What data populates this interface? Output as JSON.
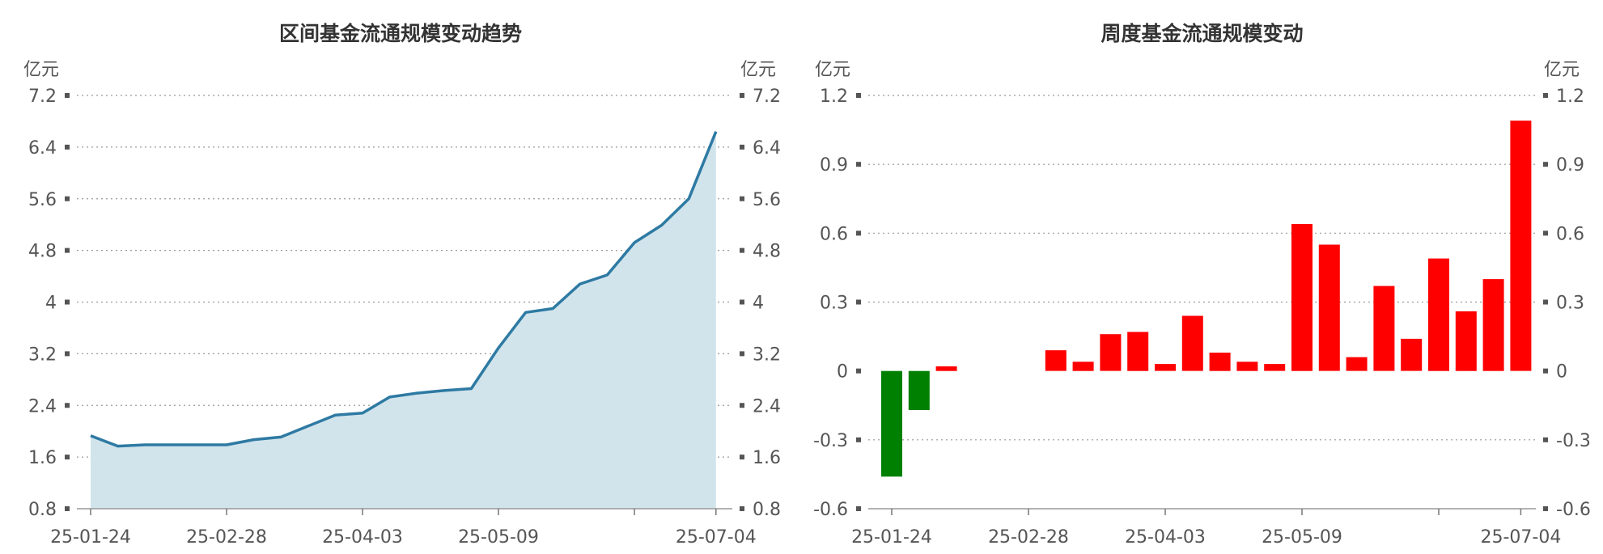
{
  "chart_data": [
    {
      "type": "area",
      "title": "区间基金流通规模变动趋势",
      "unit_left": "亿元",
      "unit_right": "亿元",
      "ylim": [
        0.8,
        7.2
      ],
      "yticks": [
        0.8,
        1.6,
        2.4,
        3.2,
        4,
        4.8,
        5.6,
        6.4,
        7.2
      ],
      "ytick_labels": [
        "0.8",
        "1.6",
        "2.4",
        "3.2",
        "4",
        "4.8",
        "5.6",
        "6.4",
        "7.2"
      ],
      "xtick_labels": [
        "25-01-24",
        "25-02-28",
        "25-04-03",
        "25-05-09",
        "25-07-04"
      ],
      "xtick_label_index": [
        0,
        5,
        10,
        15,
        23
      ],
      "xtick_mark_index": [
        0,
        5,
        10,
        15,
        20,
        23
      ],
      "values": [
        1.93,
        1.77,
        1.79,
        1.79,
        1.79,
        1.79,
        1.87,
        1.91,
        2.08,
        2.25,
        2.28,
        2.53,
        2.59,
        2.63,
        2.66,
        3.29,
        3.84,
        3.9,
        4.28,
        4.42,
        4.92,
        5.19,
        5.6,
        6.64
      ],
      "colors": {
        "line": "#2e7aa3",
        "fill": "#d1e4ec"
      },
      "grid": true
    },
    {
      "type": "bar",
      "title": "周度基金流通规模变动",
      "unit_left": "亿元",
      "unit_right": "亿元",
      "ylim": [
        -0.6,
        1.2
      ],
      "yticks": [
        -0.6,
        -0.3,
        0,
        0.3,
        0.6,
        0.9,
        1.2
      ],
      "ytick_labels": [
        "-0.6",
        "-0.3",
        "0",
        "0.3",
        "0.6",
        "0.9",
        "1.2"
      ],
      "xtick_labels": [
        "25-01-24",
        "25-02-28",
        "25-04-03",
        "25-05-09",
        "25-07-04"
      ],
      "xtick_label_index": [
        0,
        5,
        10,
        15,
        23
      ],
      "xtick_mark_index": [
        0,
        5,
        10,
        15,
        20,
        23
      ],
      "values": [
        -0.46,
        -0.17,
        0.02,
        0,
        0,
        0,
        0.09,
        0.04,
        0.16,
        0.17,
        0.03,
        0.24,
        0.08,
        0.04,
        0.03,
        0.64,
        0.55,
        0.06,
        0.37,
        0.14,
        0.49,
        0.26,
        0.4,
        1.09
      ],
      "colors": {
        "positive": "#ff0000",
        "negative": "#008000"
      },
      "grid": true
    }
  ]
}
